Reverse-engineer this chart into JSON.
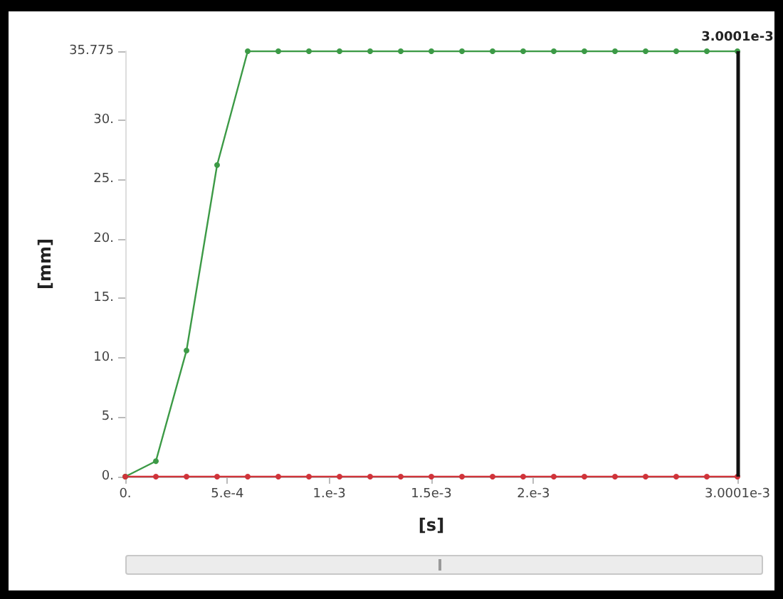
{
  "chart_data": {
    "type": "line",
    "xlabel": "[s]",
    "ylabel": "[mm]",
    "x": [
      0,
      0.00015,
      0.0003,
      0.00045,
      0.0006,
      0.00075,
      0.0009,
      0.00105,
      0.0012,
      0.00135,
      0.0015,
      0.00165,
      0.0018,
      0.00195,
      0.0021,
      0.00225,
      0.0024,
      0.00255,
      0.0027,
      0.00285,
      0.003
    ],
    "series": [
      {
        "color": "#3c9a46",
        "values": [
          0,
          1.3,
          10.6,
          26.2,
          35.775,
          35.775,
          35.775,
          35.775,
          35.775,
          35.775,
          35.775,
          35.775,
          35.775,
          35.775,
          35.775,
          35.775,
          35.775,
          35.775,
          35.775,
          35.775,
          35.775
        ]
      },
      {
        "color": "#d0343a",
        "values": [
          0,
          0,
          0,
          0,
          0,
          0,
          0,
          0,
          0,
          0,
          0,
          0,
          0,
          0,
          0,
          0,
          0,
          0,
          0,
          0,
          0
        ]
      }
    ],
    "xlim": [
      0,
      0.0030001
    ],
    "xticks": [
      {
        "value": 0,
        "label": "0."
      },
      {
        "value": 0.0005,
        "label": "5.e-4"
      },
      {
        "value": 0.001,
        "label": "1.e-3"
      },
      {
        "value": 0.0015,
        "label": "1.5e-3"
      },
      {
        "value": 0.002,
        "label": "2.e-3"
      },
      {
        "value": 0.0030001,
        "label": "3.0001e-3"
      }
    ],
    "ylim": [
      0,
      35.775
    ],
    "yticks": [
      {
        "value": 0,
        "label": "0."
      },
      {
        "value": 5,
        "label": "5."
      },
      {
        "value": 10,
        "label": "10."
      },
      {
        "value": 15,
        "label": "15."
      },
      {
        "value": 20,
        "label": "20."
      },
      {
        "value": 25,
        "label": "25."
      },
      {
        "value": 30,
        "label": "30."
      },
      {
        "value": 35.775,
        "label": "35.775"
      }
    ],
    "ref_lines": [
      {
        "axis": "x",
        "value": 0.0030001,
        "label": "3.0001e-3",
        "color": "#111111"
      }
    ],
    "marker": "circle",
    "line_style": "solid",
    "grid": false
  }
}
